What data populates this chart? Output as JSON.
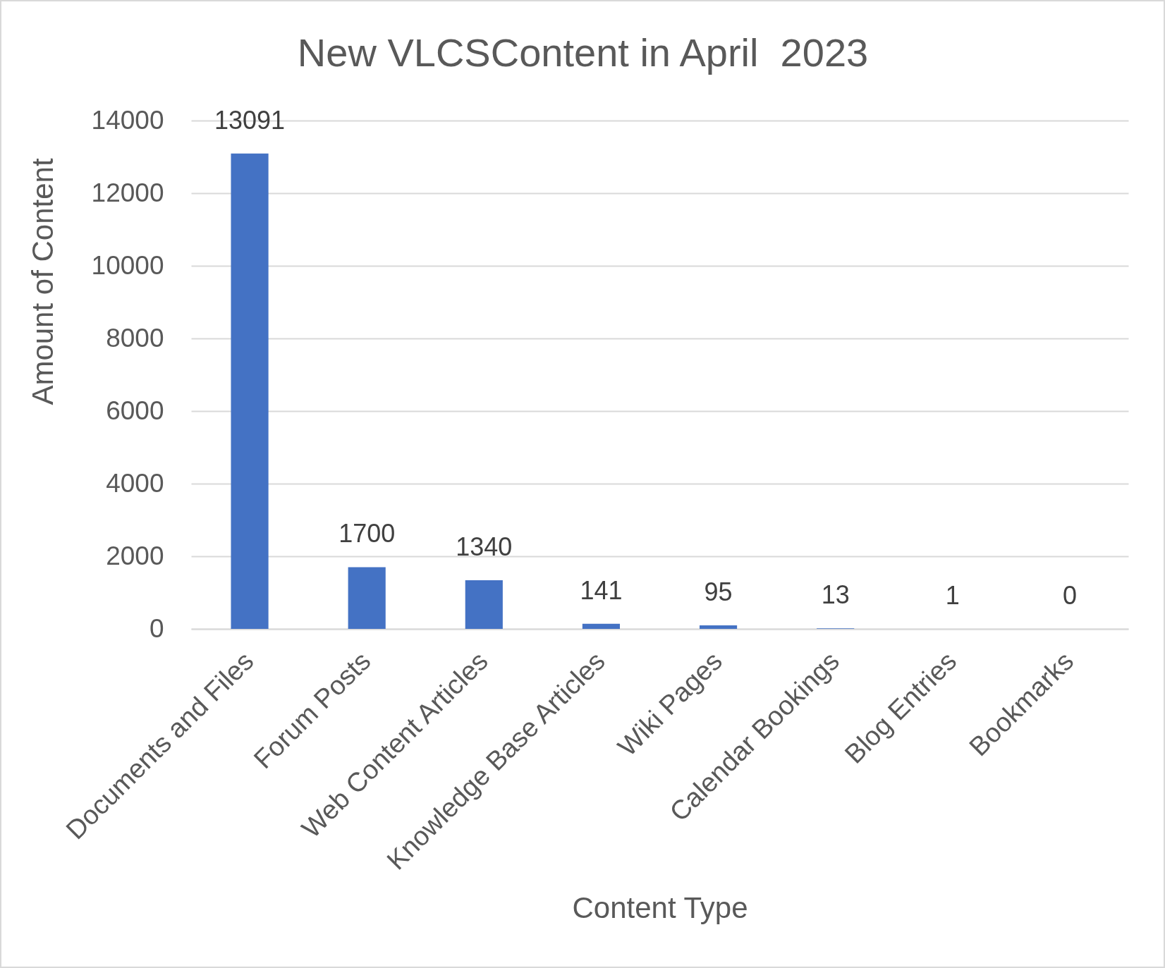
{
  "chart_data": {
    "type": "bar",
    "title": "New VLCSContent in April  2023",
    "xlabel": "Content Type",
    "ylabel": "Amount of Content",
    "categories": [
      "Documents and Files",
      "Forum Posts",
      "Web Content Articles",
      "Knowledge Base Articles",
      "Wiki Pages",
      "Calendar Bookings",
      "Blog Entries",
      "Bookmarks"
    ],
    "values": [
      13091,
      1700,
      1340,
      141,
      95,
      13,
      1,
      0
    ],
    "color": "#4472c4",
    "ylim": [
      0,
      14000
    ],
    "yticks": [
      0,
      2000,
      4000,
      6000,
      8000,
      10000,
      12000,
      14000
    ],
    "grid": "y",
    "data_labels": true
  }
}
